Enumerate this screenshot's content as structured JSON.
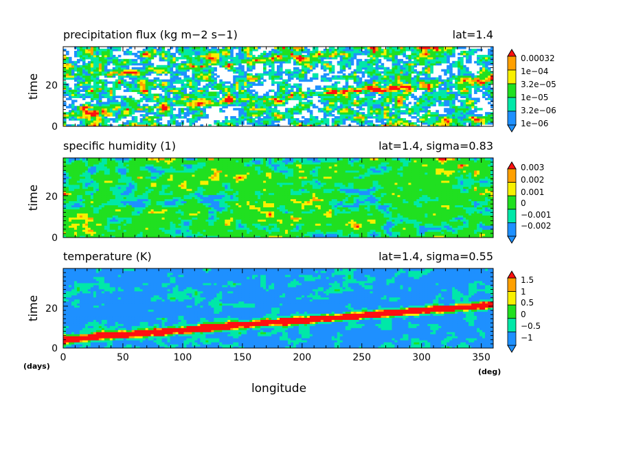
{
  "colors": {
    "white": "#ffffff",
    "blue": "#1e90ff",
    "cyan": "#00e8a8",
    "green": "#20e020",
    "yellow": "#f8f000",
    "orange": "#ffa000",
    "red": "#ff1010"
  },
  "chart_data": [
    {
      "type": "heatmap",
      "title": "precipitation flux (kg m−2 s−1)",
      "annotation": "lat=1.4",
      "xlabel": "longitude",
      "ylabel": "time",
      "xlim": [
        0,
        360
      ],
      "ylim": [
        0,
        38
      ],
      "yticks": [
        "0",
        "20"
      ],
      "colorbar": {
        "labels": [
          "0.00032",
          "1e−04",
          "3.2e−05",
          "1e−05",
          "3.2e−06",
          "1e−06"
        ]
      }
    },
    {
      "type": "heatmap",
      "title": "specific humidity (1)",
      "annotation": "lat=1.4, sigma=0.83",
      "xlabel": "longitude",
      "ylabel": "time",
      "xlim": [
        0,
        360
      ],
      "ylim": [
        0,
        38
      ],
      "yticks": [
        "0",
        "20"
      ],
      "colorbar": {
        "labels": [
          "0.003",
          "0.002",
          "0.001",
          "0",
          "−0.001",
          "−0.002"
        ]
      }
    },
    {
      "type": "heatmap",
      "title": "temperature (K)",
      "annotation": "lat=1.4, sigma=0.55",
      "xlabel": "longitude",
      "ylabel": "time",
      "xlim": [
        0,
        360
      ],
      "ylim": [
        0,
        38
      ],
      "yticks": [
        "0",
        "20"
      ],
      "xticks": [
        "0",
        "50",
        "100",
        "150",
        "200",
        "250",
        "300",
        "350"
      ],
      "xunit": "(deg)",
      "yunit": "(days)",
      "colorbar": {
        "labels": [
          "1.5",
          "1",
          "0.5",
          "0",
          "−0.5",
          "−1"
        ]
      }
    }
  ]
}
